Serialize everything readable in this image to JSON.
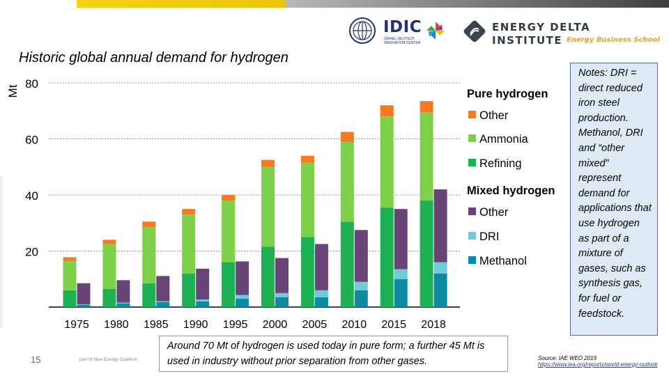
{
  "header": {
    "idic_logo_text": "IDIC",
    "idic_subtext": "ISRAEL-DEUTSCH INNOVATION CENTER",
    "edi_line1": "ENERGY DELTA",
    "edi_line2": "INSTITUTE",
    "edi_tagline": "Energy Business School"
  },
  "title": "Historic global annual demand for hydrogen",
  "notes": "Notes: DRI = direct reduced iron steel production. Methanol, DRI and “other mixed” represent demand for applications that use hydrogen as part of a mixture of gases, such as synthesis gas, for fuel or feedstock.",
  "caption": "Around 70 Mt of hydrogen is used today in pure form; a further 45 Mt is used in industry without prior separation from other gases.",
  "page_number": "15",
  "footer_note": "part of New Energy Coalition",
  "source": {
    "label": "Source: IAE WEO 2019",
    "link": "https://www.iea.org/reports/world-energy-outlook"
  },
  "colors": {
    "pure_other": "#f47b20",
    "ammonia": "#7ed04b",
    "refining": "#1eb153",
    "mixed_other": "#674677",
    "dri": "#6fcbdc",
    "methanol": "#0f8aa2",
    "gridline": "#8c8c8c"
  },
  "chart_data": {
    "type": "bar",
    "stacked": true,
    "grouped": true,
    "title": "Historic global annual demand for hydrogen",
    "ylabel": "Mt",
    "ylim": [
      0,
      80
    ],
    "yticks": [
      20,
      40,
      60,
      80
    ],
    "categories": [
      "1975",
      "1980",
      "1985",
      "1990",
      "1995",
      "2000",
      "2005",
      "2010",
      "2015",
      "2018"
    ],
    "groups": [
      {
        "name": "Pure hydrogen",
        "series": [
          {
            "name": "Refining",
            "color_key": "refining",
            "values": [
              6,
              6.5,
              8.5,
              12,
              16,
              21.5,
              25,
              30.5,
              35.5,
              38
            ]
          },
          {
            "name": "Ammonia",
            "color_key": "ammonia",
            "values": [
              10.5,
              16,
              20,
              21,
              22,
              28.5,
              26.5,
              28.5,
              32.5,
              31.5
            ]
          },
          {
            "name": "Other",
            "color_key": "pure_other",
            "values": [
              1.3,
              1.5,
              2,
              2,
              2,
              2.5,
              2.5,
              3.5,
              4,
              4
            ]
          }
        ]
      },
      {
        "name": "Mixed hydrogen",
        "series": [
          {
            "name": "Methanol",
            "color_key": "methanol",
            "values": [
              0.8,
              1.3,
              1.8,
              2,
              3,
              3.5,
              3.5,
              6,
              10,
              12
            ]
          },
          {
            "name": "DRI",
            "color_key": "dri",
            "values": [
              0.2,
              0.3,
              0.3,
              0.7,
              1.3,
              1.5,
              2.5,
              3,
              3.5,
              4
            ]
          },
          {
            "name": "Other",
            "color_key": "mixed_other",
            "values": [
              7.5,
              8,
              9,
              11,
              12,
              12.5,
              16.5,
              18.5,
              21.5,
              26
            ]
          }
        ]
      }
    ],
    "legend": {
      "placement": "right",
      "sections": [
        {
          "heading": "Pure hydrogen",
          "items": [
            {
              "label": "Other",
              "color_key": "pure_other"
            },
            {
              "label": "Ammonia",
              "color_key": "ammonia"
            },
            {
              "label": "Refining",
              "color_key": "refining"
            }
          ]
        },
        {
          "heading": "Mixed hydrogen",
          "items": [
            {
              "label": "Other",
              "color_key": "mixed_other"
            },
            {
              "label": "DRI",
              "color_key": "dri"
            },
            {
              "label": "Methanol",
              "color_key": "methanol"
            }
          ]
        }
      ]
    }
  }
}
